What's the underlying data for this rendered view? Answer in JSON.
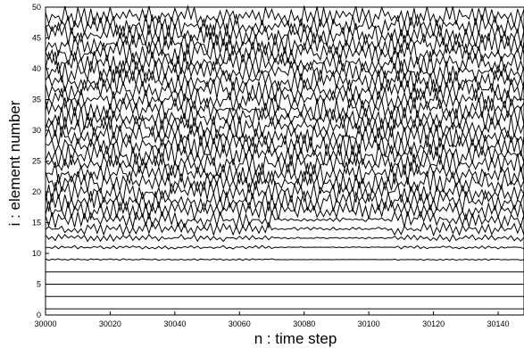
{
  "chart_data": {
    "type": "line",
    "title": "",
    "xlabel": "n : time step",
    "ylabel": "i : element number",
    "xlim": [
      30000,
      30148
    ],
    "ylim": [
      0,
      50
    ],
    "x_ticks": [
      "30000",
      "30020",
      "30040",
      "30060",
      "30080",
      "30100",
      "30120",
      "30140"
    ],
    "y_ticks": [
      "0",
      "5",
      "10",
      "15",
      "20",
      "25",
      "30",
      "35",
      "40",
      "45",
      "50"
    ],
    "grid": false,
    "legend": "none",
    "line_color": "#000000",
    "n_start": 30000,
    "n_end": 30148,
    "series_note": "space-time plot: each line shows x_n(i) + i for element i; elements 1-10 laminar (flat), 11-49 chaotic",
    "series": [
      {
        "i": 1,
        "amplitude": 0.0
      },
      {
        "i": 3,
        "amplitude": 0.0
      },
      {
        "i": 5,
        "amplitude": 0.0
      },
      {
        "i": 7,
        "amplitude": 0.0
      },
      {
        "i": 9,
        "amplitude": 0.15
      },
      {
        "i": 11,
        "amplitude": 0.3
      },
      {
        "i": 12.5,
        "amplitude": 0.6
      },
      {
        "i": 14,
        "amplitude": 1.1
      },
      {
        "i": 15.5,
        "amplitude": 1.4
      },
      {
        "i": 17,
        "amplitude": 1.6
      },
      {
        "i": 18.5,
        "amplitude": 1.8
      },
      {
        "i": 20,
        "amplitude": 1.9
      },
      {
        "i": 21.5,
        "amplitude": 2.0
      },
      {
        "i": 23,
        "amplitude": 2.0
      },
      {
        "i": 24.5,
        "amplitude": 2.0
      },
      {
        "i": 26,
        "amplitude": 2.0
      },
      {
        "i": 27.5,
        "amplitude": 2.0
      },
      {
        "i": 29,
        "amplitude": 2.0
      },
      {
        "i": 30.5,
        "amplitude": 2.0
      },
      {
        "i": 32,
        "amplitude": 2.0
      },
      {
        "i": 33.5,
        "amplitude": 2.0
      },
      {
        "i": 35,
        "amplitude": 2.0
      },
      {
        "i": 36.5,
        "amplitude": 2.0
      },
      {
        "i": 38,
        "amplitude": 2.0
      },
      {
        "i": 39.5,
        "amplitude": 2.0
      },
      {
        "i": 41,
        "amplitude": 2.0
      },
      {
        "i": 42.5,
        "amplitude": 2.0
      },
      {
        "i": 44,
        "amplitude": 2.0
      },
      {
        "i": 45.5,
        "amplitude": 2.0
      },
      {
        "i": 47,
        "amplitude": 2.0
      },
      {
        "i": 48.5,
        "amplitude": 1.8
      }
    ]
  }
}
